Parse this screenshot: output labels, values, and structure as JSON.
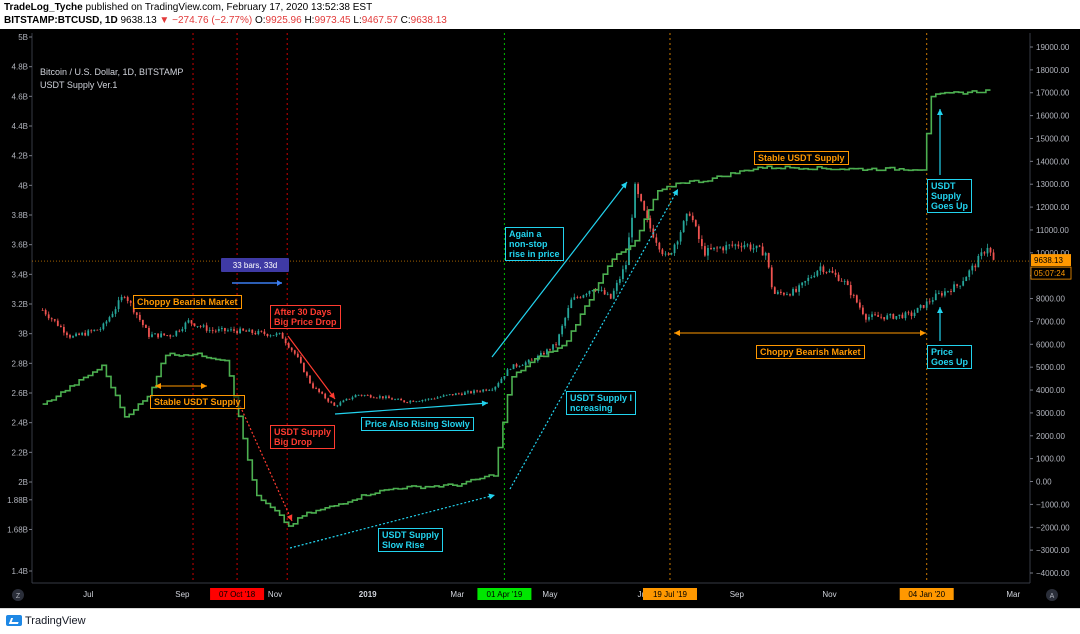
{
  "header": {
    "author": "TradeLog_Tyche",
    "published_text": " published on TradingView.com, February 17, 2020 13:52:38 EST",
    "symbol": "BITSTAMP:BTCUSD, 1D",
    "last": "9638.13",
    "change": "−274.76 (−2.77%)",
    "o_label": "O:",
    "o_val": "9925.96",
    "h_label": "H:",
    "h_val": "9973.45",
    "l_label": "L:",
    "l_val": "9467.57",
    "c_label": "C:",
    "c_val": "9638.13"
  },
  "legend": {
    "main": "Bitcoin / U.S. Dollar, 1D, BITSTAMP",
    "indicator": "USDT Supply Ver.1"
  },
  "colors": {
    "candle_up": "#26a69a",
    "candle_down": "#ef5350",
    "usdt_line": "#4caf50",
    "annotation_orange": "#ff9800",
    "annotation_red": "#ff3b30",
    "annotation_cyan": "#22d3ee",
    "marker_red": "#ff0000",
    "marker_green": "#00e600",
    "marker_orange": "#ff9800",
    "price_label_bg": "#ff9800"
  },
  "footer": {
    "brand": "TradingView"
  },
  "chart_data": {
    "type": "line",
    "x_ticks": [
      "Jul",
      "Sep",
      "Nov",
      "2019",
      "Mar",
      "May",
      "Jul",
      "Sep",
      "Nov",
      "Mar"
    ],
    "x_highlight_labels": [
      {
        "label": "07 Oct '18",
        "color": "red"
      },
      {
        "label": "01 Apr '19",
        "color": "green"
      },
      {
        "label": "19 Jul '19",
        "color": "orange"
      },
      {
        "label": "04 Jan '20",
        "color": "orange"
      }
    ],
    "left_axis_ticks": [
      "5B",
      "4.8B",
      "4.6B",
      "4.4B",
      "4.2B",
      "4B",
      "3.8B",
      "3.6B",
      "3.4B",
      "3.2B",
      "3B",
      "2.8B",
      "2.6B",
      "2.4B",
      "2.2B",
      "2B",
      "1.88B",
      "1.68B",
      "1.4B"
    ],
    "right_axis_ticks": [
      "19000.00",
      "18000.00",
      "17000.00",
      "16000.00",
      "15000.00",
      "14000.00",
      "13000.00",
      "12000.00",
      "11000.00",
      "10000.00",
      "9000.00",
      "8000.00",
      "7000.00",
      "6000.00",
      "5000.00",
      "4000.00",
      "3000.00",
      "2000.00",
      "1000.00",
      "0.00",
      "−1000.00",
      "−2000.00",
      "−3000.00",
      "−4000.00"
    ],
    "right_ylim": [
      -4000,
      19000
    ],
    "last_price_label": "9638.13",
    "countdown_label": "05:07:24",
    "series": [
      {
        "name": "Bitcoin / U.S. Dollar",
        "x": [
          "2018-06-01",
          "2018-06-20",
          "2018-07-10",
          "2018-07-25",
          "2018-08-10",
          "2018-08-25",
          "2018-09-05",
          "2018-09-20",
          "2018-10-05",
          "2018-10-20",
          "2018-11-05",
          "2018-11-15",
          "2018-11-25",
          "2018-12-10",
          "2018-12-25",
          "2019-01-10",
          "2019-01-25",
          "2019-02-10",
          "2019-02-25",
          "2019-03-10",
          "2019-03-25",
          "2019-04-05",
          "2019-04-20",
          "2019-05-05",
          "2019-05-15",
          "2019-05-30",
          "2019-06-10",
          "2019-06-20",
          "2019-06-26",
          "2019-07-05",
          "2019-07-17",
          "2019-08-01",
          "2019-08-10",
          "2019-08-20",
          "2019-09-05",
          "2019-09-20",
          "2019-09-25",
          "2019-10-10",
          "2019-10-26",
          "2019-11-10",
          "2019-11-25",
          "2019-12-10",
          "2019-12-25",
          "2020-01-10",
          "2020-01-25",
          "2020-02-05",
          "2020-02-13",
          "2020-02-17"
        ],
        "values": [
          7500,
          6300,
          6700,
          8200,
          6400,
          6400,
          7000,
          6600,
          6600,
          6500,
          6400,
          5500,
          4200,
          3300,
          3800,
          3700,
          3500,
          3600,
          3800,
          3900,
          4100,
          5000,
          5300,
          6000,
          7900,
          8500,
          8000,
          9500,
          12800,
          11200,
          9700,
          11800,
          10000,
          10200,
          10400,
          10000,
          8200,
          8300,
          9400,
          8800,
          7200,
          7200,
          7300,
          8100,
          8600,
          9500,
          10300,
          9638
        ]
      },
      {
        "name": "USDT Supply Ver.1",
        "x": [
          "2018-06-01",
          "2018-06-25",
          "2018-07-10",
          "2018-07-25",
          "2018-08-10",
          "2018-08-20",
          "2018-09-10",
          "2018-09-30",
          "2018-10-15",
          "2018-10-20",
          "2018-11-01",
          "2018-11-10",
          "2018-11-20",
          "2018-12-10",
          "2019-01-01",
          "2019-01-20",
          "2019-02-10",
          "2019-03-01",
          "2019-03-25",
          "2019-04-05",
          "2019-04-20",
          "2019-05-10",
          "2019-05-25",
          "2019-06-10",
          "2019-06-25",
          "2019-07-10",
          "2019-07-25",
          "2019-08-10",
          "2019-08-25",
          "2019-09-15",
          "2019-10-10",
          "2019-11-10",
          "2019-12-10",
          "2020-01-03",
          "2020-01-05",
          "2020-01-20",
          "2020-02-17"
        ],
        "values": [
          2.52,
          2.68,
          2.78,
          2.44,
          2.58,
          2.86,
          2.86,
          2.82,
          2.1,
          1.9,
          1.8,
          1.7,
          1.78,
          1.84,
          1.92,
          1.96,
          1.97,
          1.98,
          2.05,
          2.7,
          2.82,
          2.92,
          3.2,
          3.5,
          3.6,
          3.95,
          4.02,
          4.03,
          4.07,
          4.12,
          4.12,
          4.11,
          4.11,
          4.11,
          4.6,
          4.62,
          4.64
        ]
      }
    ],
    "annotations": [
      {
        "text": "Choppy Bearish Market",
        "color": "orange"
      },
      {
        "text": "Stable USDT Supply",
        "color": "orange"
      },
      {
        "text": "After 30 Days\nBig Price Drop",
        "color": "red"
      },
      {
        "text": "USDT Supply\nBig Drop",
        "color": "red"
      },
      {
        "text": "Price Also Rising Slowly",
        "color": "cyan"
      },
      {
        "text": "USDT Supply\nSlow Rise",
        "color": "cyan"
      },
      {
        "text": "Again  a\nnon-stop\nrise in price",
        "color": "cyan"
      },
      {
        "text": "USDT Supply I\nncreasing",
        "color": "cyan"
      },
      {
        "text": "Stable USDT Supply",
        "color": "orange"
      },
      {
        "text": "Choppy Bearish Market",
        "color": "orange"
      },
      {
        "text": "USDT\nSupply\nGoes Up",
        "color": "cyan"
      },
      {
        "text": "Price\nGoes Up",
        "color": "cyan"
      }
    ],
    "measure_label": "33 bars, 33d",
    "grid": false
  }
}
